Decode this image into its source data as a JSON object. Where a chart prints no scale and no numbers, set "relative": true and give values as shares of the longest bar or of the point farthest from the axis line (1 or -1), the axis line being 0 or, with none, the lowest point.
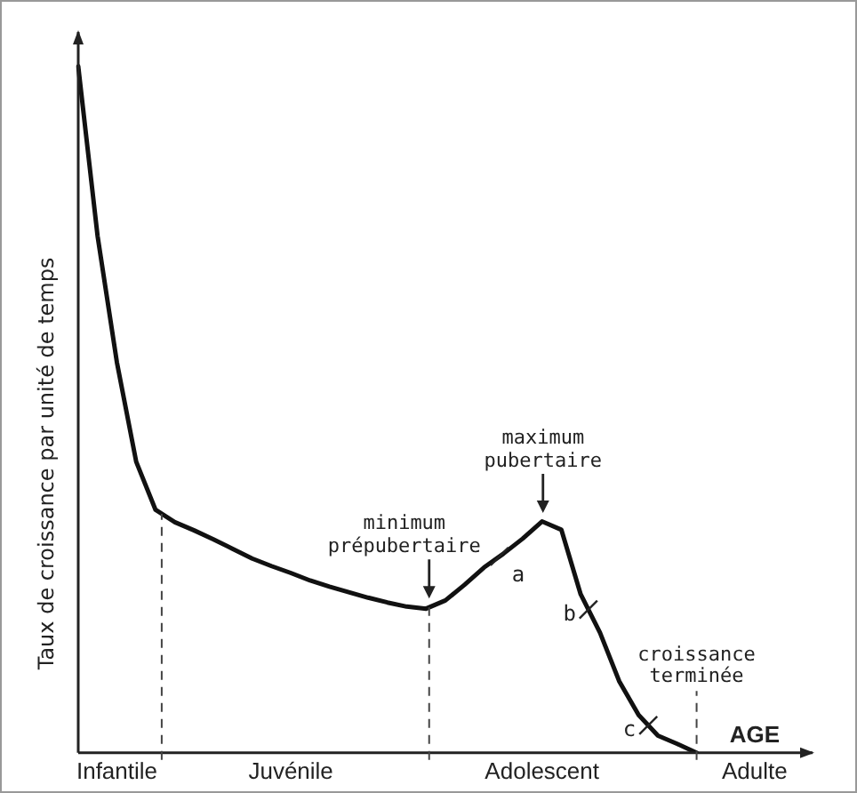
{
  "chart_data": {
    "type": "line",
    "relative": true,
    "ylabel": "Taux de croissance par unité de temps",
    "grid": false,
    "legend": false,
    "marker": "none",
    "line_style": "solid",
    "categories": [
      null,
      null,
      "Infantile",
      null,
      null,
      null,
      null,
      null,
      null,
      null,
      null,
      "Juvénile",
      null,
      null,
      null,
      null,
      null,
      null,
      null,
      null,
      null,
      null,
      null,
      null,
      "Adolescent",
      null,
      null,
      null,
      null,
      null,
      null,
      null,
      null,
      null,
      null,
      "Adulte",
      null,
      null,
      null
    ],
    "series": [
      {
        "color": "#111111",
        "values": [
          1,
          0.753,
          0.569,
          0.424,
          0.354,
          0.336,
          0.324,
          0.311,
          0.297,
          0.283,
          0.272,
          0.262,
          0.251,
          0.242,
          0.234,
          0.226,
          0.219,
          0.213,
          0.21,
          0.222,
          0.245,
          0.27,
          0.29,
          0.312,
          0.337,
          0.325,
          0.231,
          0.175,
          0.104,
          0.055,
          0.025,
          0.013,
          0,
          null,
          null,
          null,
          null,
          null,
          null
        ]
      }
    ],
    "annotations": [
      "minimum prépubertaire",
      "maximum pubertaire",
      "a",
      "b",
      "c",
      "croissance terminée",
      "AGE"
    ]
  }
}
